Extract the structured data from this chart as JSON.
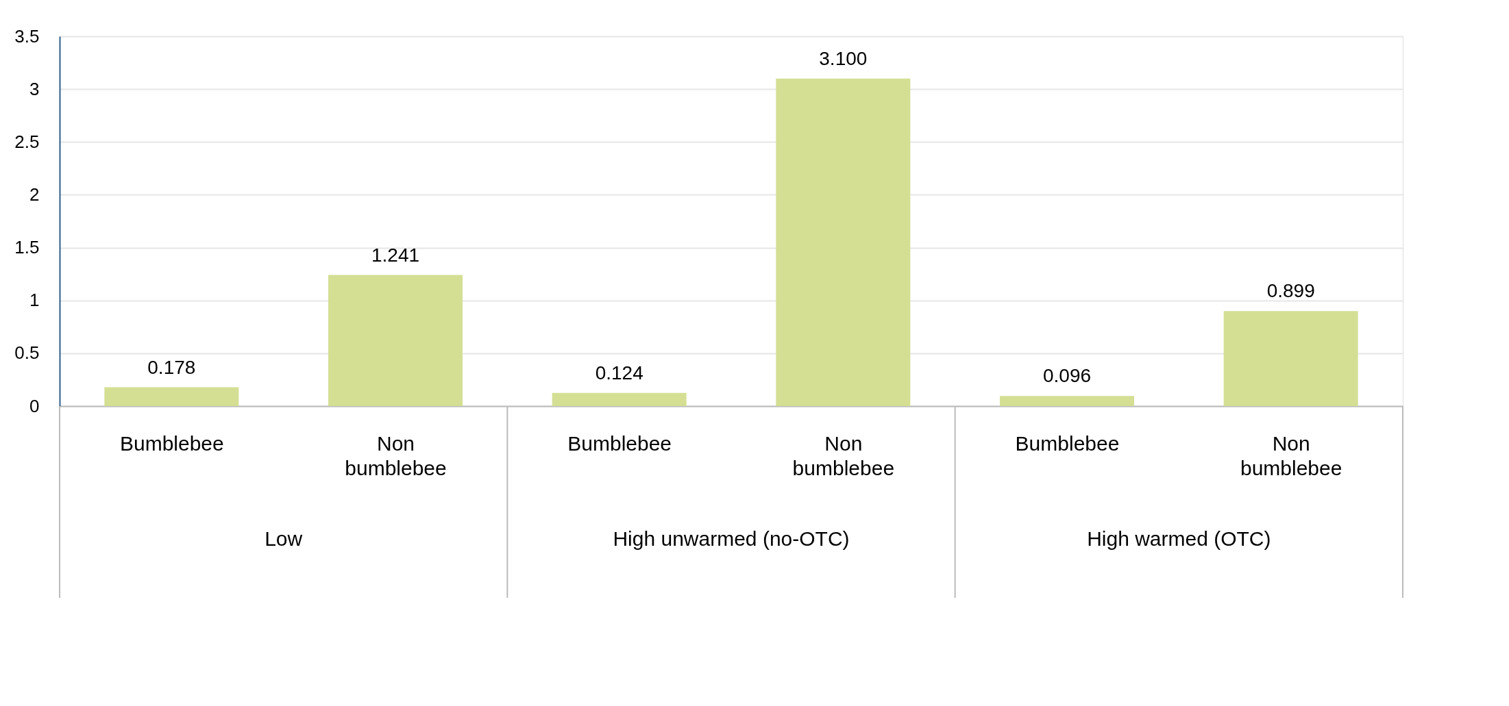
{
  "chart_data": {
    "type": "bar",
    "categories": [
      "Bumblebee",
      "Non bumblebee",
      "Bumblebee",
      "Non bumblebee",
      "Bumblebee",
      "Non bumblebee"
    ],
    "values": [
      0.178,
      1.241,
      0.124,
      3.1,
      0.096,
      0.899
    ],
    "value_labels": [
      "0.178",
      "1.241",
      "0.124",
      "3.100",
      "0.096",
      "0.899"
    ],
    "color": "#d4df94",
    "ylim": [
      0,
      3.5
    ],
    "yticks": [
      0,
      0.5,
      1,
      1.5,
      2,
      2.5,
      3,
      3.5
    ],
    "grid": "y",
    "annotations": [
      "Low",
      "High unwarmed (no-OTC)",
      "High warmed (OTC)"
    ]
  }
}
